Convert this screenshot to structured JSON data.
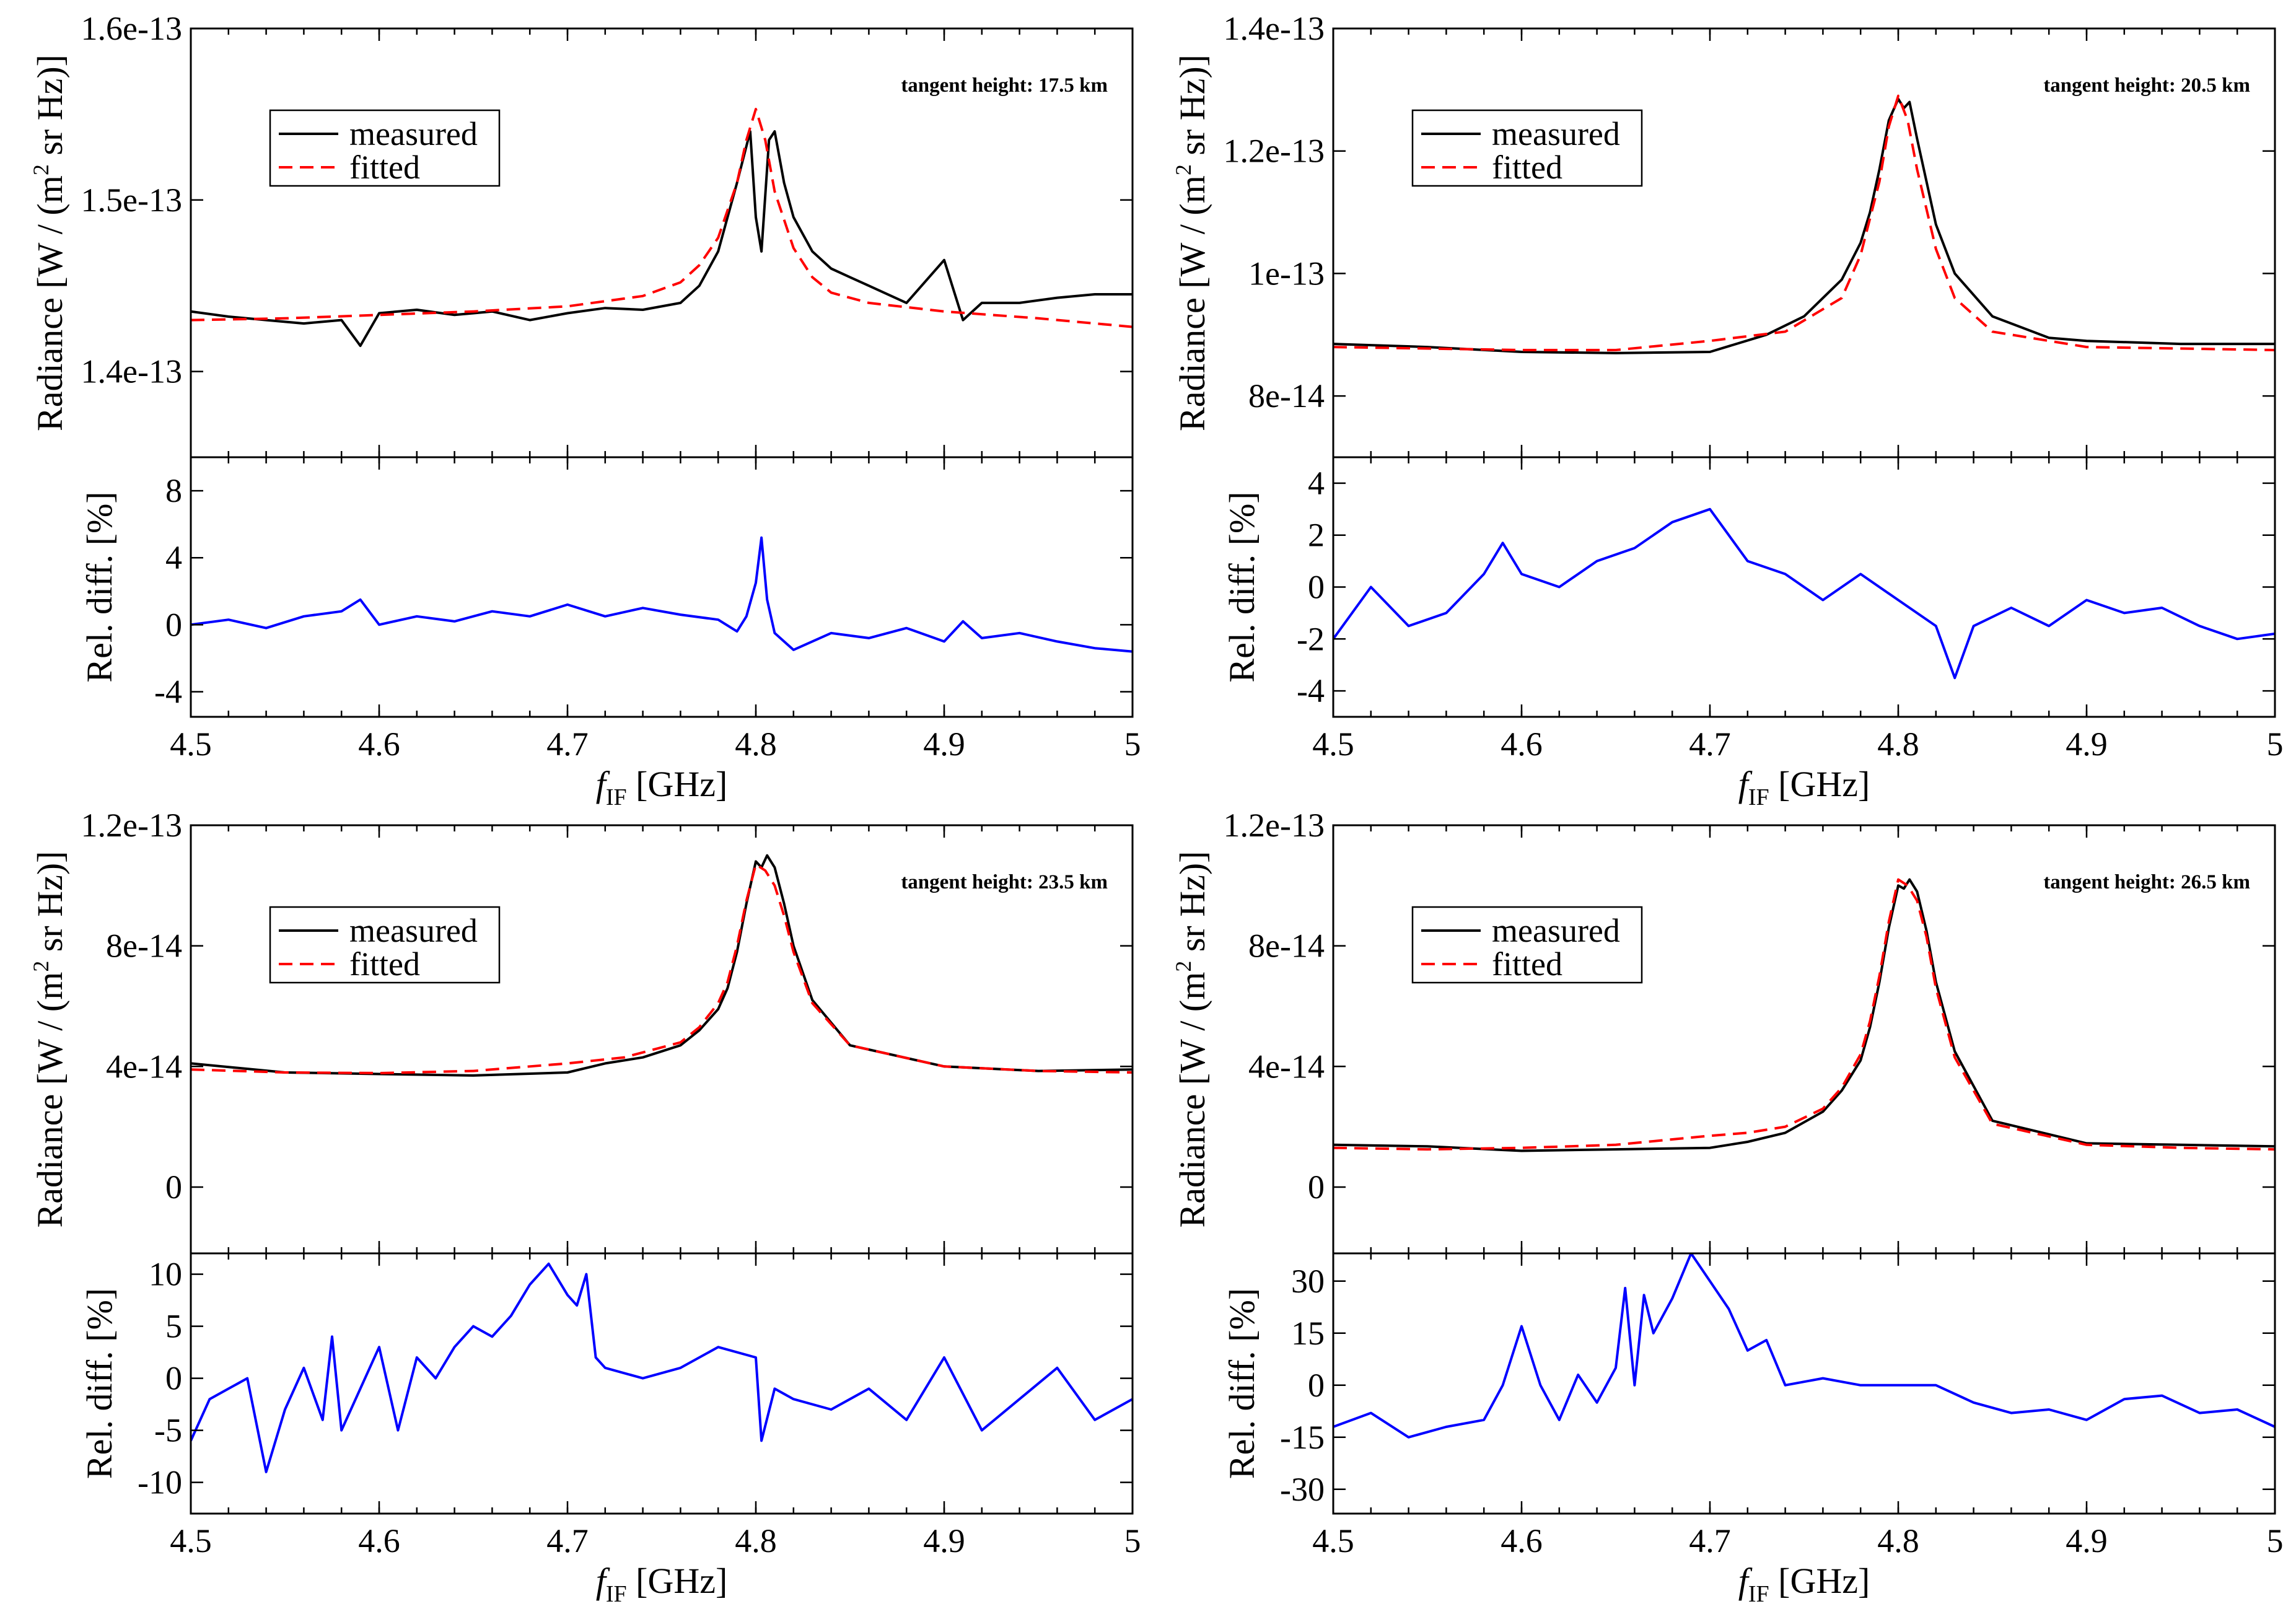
{
  "figure": {
    "x_label_main": "f",
    "x_label_sub": "IF",
    "x_label_unit": " [GHz]",
    "x_tick_labels": [
      "4.5",
      "4.6",
      "4.7",
      "4.8",
      "4.9",
      "5"
    ],
    "colors": {
      "measured": "#000000",
      "fitted": "#ff0000",
      "difference": "#0000ff"
    }
  },
  "chart_data": [
    {
      "type": "line",
      "title": "tangent height: 17.5 km",
      "legend": [
        "measured",
        "fitted"
      ],
      "legend_position": "top-left",
      "xlim": [
        4.5,
        5.0
      ],
      "xticks": [
        4.5,
        4.6,
        4.7,
        4.8,
        4.9,
        5.0
      ],
      "radiance": {
        "ylabel_prefix": "Radiance [W / (m",
        "ylabel_sup": "2",
        "ylabel_suffix": " sr Hz)]",
        "ylim": [
          1.35e-13,
          1.6e-13
        ],
        "yticks": [
          1.4e-13,
          1.5e-13,
          1.6e-13
        ],
        "ytick_labels": [
          "1.4e-13",
          "1.5e-13",
          "1.6e-13"
        ],
        "series": [
          {
            "name": "measured",
            "x": [
              4.5,
              4.52,
              4.54,
              4.56,
              4.58,
              4.59,
              4.6,
              4.62,
              4.64,
              4.66,
              4.68,
              4.7,
              4.72,
              4.74,
              4.76,
              4.77,
              4.78,
              4.79,
              4.797,
              4.8,
              4.803,
              4.807,
              4.81,
              4.815,
              4.82,
              4.83,
              4.84,
              4.85,
              4.86,
              4.88,
              4.9,
              4.91,
              4.92,
              4.94,
              4.96,
              4.98,
              5.0
            ],
            "y": [
              1.435e-13,
              1.432e-13,
              1.43e-13,
              1.428e-13,
              1.43e-13,
              1.415e-13,
              1.434e-13,
              1.436e-13,
              1.433e-13,
              1.435e-13,
              1.43e-13,
              1.434e-13,
              1.437e-13,
              1.436e-13,
              1.44e-13,
              1.45e-13,
              1.47e-13,
              1.51e-13,
              1.54e-13,
              1.49e-13,
              1.47e-13,
              1.535e-13,
              1.54e-13,
              1.51e-13,
              1.49e-13,
              1.47e-13,
              1.46e-13,
              1.455e-13,
              1.45e-13,
              1.44e-13,
              1.465e-13,
              1.43e-13,
              1.44e-13,
              1.44e-13,
              1.443e-13,
              1.445e-13,
              1.445e-13
            ]
          },
          {
            "name": "fitted",
            "x": [
              4.5,
              4.55,
              4.6,
              4.65,
              4.7,
              4.74,
              4.76,
              4.77,
              4.78,
              4.79,
              4.795,
              4.8,
              4.805,
              4.81,
              4.82,
              4.83,
              4.84,
              4.86,
              4.9,
              4.95,
              5.0
            ],
            "y": [
              1.43e-13,
              1.431e-13,
              1.433e-13,
              1.435e-13,
              1.438e-13,
              1.444e-13,
              1.452e-13,
              1.462e-13,
              1.478e-13,
              1.51e-13,
              1.535e-13,
              1.553e-13,
              1.535e-13,
              1.505e-13,
              1.472e-13,
              1.455e-13,
              1.446e-13,
              1.44e-13,
              1.435e-13,
              1.431e-13,
              1.426e-13
            ]
          }
        ]
      },
      "difference": {
        "ylabel": "Rel. diff. [%]",
        "ylim": [
          -5.5,
          10
        ],
        "yticks": [
          -4,
          0,
          4,
          8
        ],
        "ytick_labels": [
          "-4",
          "0",
          "4",
          "8"
        ],
        "series": [
          {
            "name": "difference",
            "x": [
              4.5,
              4.52,
              4.54,
              4.56,
              4.58,
              4.59,
              4.6,
              4.62,
              4.64,
              4.66,
              4.68,
              4.7,
              4.72,
              4.74,
              4.76,
              4.78,
              4.79,
              4.795,
              4.8,
              4.803,
              4.806,
              4.81,
              4.82,
              4.84,
              4.86,
              4.88,
              4.9,
              4.91,
              4.92,
              4.94,
              4.96,
              4.98,
              5.0
            ],
            "y": [
              0,
              0.3,
              -0.2,
              0.5,
              0.8,
              1.5,
              0,
              0.5,
              0.2,
              0.8,
              0.5,
              1.2,
              0.5,
              1.0,
              0.6,
              0.3,
              -0.4,
              0.5,
              2.5,
              5.2,
              1.5,
              -0.5,
              -1.5,
              -0.5,
              -0.8,
              -0.2,
              -1.0,
              0.2,
              -0.8,
              -0.5,
              -1.0,
              -1.4,
              -1.6
            ]
          }
        ]
      }
    },
    {
      "type": "line",
      "title": "tangent height: 20.5 km",
      "legend": [
        "measured",
        "fitted"
      ],
      "legend_position": "top-left",
      "xlim": [
        4.5,
        5.0
      ],
      "xticks": [
        4.5,
        4.6,
        4.7,
        4.8,
        4.9,
        5.0
      ],
      "radiance": {
        "ylabel_prefix": "Radiance [W / (m",
        "ylabel_sup": "2",
        "ylabel_suffix": " sr Hz)]",
        "ylim": [
          7e-14,
          1.4e-13
        ],
        "yticks": [
          8e-14,
          1e-13,
          1.2e-13,
          1.4e-13
        ],
        "ytick_labels": [
          "8e-14",
          "1e-13",
          "1.2e-13",
          "1.4e-13"
        ],
        "series": [
          {
            "name": "measured",
            "x": [
              4.5,
              4.55,
              4.6,
              4.65,
              4.7,
              4.73,
              4.75,
              4.77,
              4.78,
              4.785,
              4.79,
              4.795,
              4.8,
              4.803,
              4.806,
              4.81,
              4.815,
              4.82,
              4.83,
              4.85,
              4.88,
              4.9,
              4.95,
              5.0
            ],
            "y": [
              8.85e-14,
              8.8e-14,
              8.72e-14,
              8.7e-14,
              8.72e-14,
              9e-14,
              9.3e-14,
              9.9e-14,
              1.05e-13,
              1.1e-13,
              1.17e-13,
              1.25e-13,
              1.285e-13,
              1.27e-13,
              1.28e-13,
              1.22e-13,
              1.15e-13,
              1.08e-13,
              1e-13,
              9.3e-14,
              8.95e-14,
              8.9e-14,
              8.85e-14,
              8.85e-14
            ]
          },
          {
            "name": "fitted",
            "x": [
              4.5,
              4.6,
              4.65,
              4.7,
              4.74,
              4.77,
              4.78,
              4.79,
              4.795,
              4.8,
              4.805,
              4.81,
              4.82,
              4.83,
              4.85,
              4.9,
              5.0
            ],
            "y": [
              8.8e-14,
              8.75e-14,
              8.75e-14,
              8.9e-14,
              9.05e-14,
              9.6e-14,
              1.03e-13,
              1.15e-13,
              1.24e-13,
              1.29e-13,
              1.25e-13,
              1.17e-13,
              1.04e-13,
              9.6e-14,
              9.05e-14,
              8.8e-14,
              8.75e-14
            ]
          }
        ]
      },
      "difference": {
        "ylabel": "Rel. diff. [%]",
        "ylim": [
          -5,
          5
        ],
        "yticks": [
          -4,
          -2,
          0,
          2,
          4
        ],
        "ytick_labels": [
          "-4",
          "-2",
          "0",
          "2",
          "4"
        ],
        "series": [
          {
            "name": "difference",
            "x": [
              4.5,
              4.52,
              4.54,
              4.56,
              4.58,
              4.59,
              4.6,
              4.62,
              4.64,
              4.66,
              4.68,
              4.7,
              4.71,
              4.72,
              4.74,
              4.76,
              4.78,
              4.8,
              4.82,
              4.83,
              4.84,
              4.86,
              4.88,
              4.9,
              4.92,
              4.94,
              4.96,
              4.98,
              5.0
            ],
            "y": [
              -2.0,
              0.0,
              -1.5,
              -1.0,
              0.5,
              1.7,
              0.5,
              0.0,
              1.0,
              1.5,
              2.5,
              3.0,
              2.0,
              1.0,
              0.5,
              -0.5,
              0.5,
              -0.5,
              -1.5,
              -3.5,
              -1.5,
              -0.8,
              -1.5,
              -0.5,
              -1.0,
              -0.8,
              -1.5,
              -2.0,
              -1.8
            ]
          }
        ]
      }
    },
    {
      "type": "line",
      "title": "tangent height: 23.5 km",
      "legend": [
        "measured",
        "fitted"
      ],
      "legend_position": "top-left",
      "xlim": [
        4.5,
        5.0
      ],
      "xticks": [
        4.5,
        4.6,
        4.7,
        4.8,
        4.9,
        5.0
      ],
      "radiance": {
        "ylabel_prefix": "Radiance [W / (m",
        "ylabel_sup": "2",
        "ylabel_suffix": " sr Hz)]",
        "ylim": [
          -2.2e-14,
          1.2e-13
        ],
        "yticks": [
          0,
          4e-14,
          8e-14,
          1.2e-13
        ],
        "ytick_labels": [
          "0",
          "4e-14",
          "8e-14",
          "1.2e-13"
        ],
        "series": [
          {
            "name": "measured",
            "x": [
              4.5,
              4.55,
              4.6,
              4.65,
              4.7,
              4.72,
              4.74,
              4.76,
              4.77,
              4.78,
              4.785,
              4.79,
              4.795,
              4.8,
              4.803,
              4.806,
              4.81,
              4.815,
              4.82,
              4.83,
              4.85,
              4.9,
              4.95,
              5.0
            ],
            "y": [
              4.1e-14,
              3.8e-14,
              3.75e-14,
              3.7e-14,
              3.8e-14,
              4.1e-14,
              4.3e-14,
              4.7e-14,
              5.2e-14,
              5.9e-14,
              6.6e-14,
              7.8e-14,
              9.4e-14,
              1.08e-13,
              1.06e-13,
              1.1e-13,
              1.06e-13,
              9.4e-14,
              8e-14,
              6.2e-14,
              4.7e-14,
              4e-14,
              3.85e-14,
              3.9e-14
            ]
          },
          {
            "name": "fitted",
            "x": [
              4.5,
              4.55,
              4.6,
              4.65,
              4.7,
              4.73,
              4.76,
              4.77,
              4.78,
              4.785,
              4.79,
              4.795,
              4.8,
              4.805,
              4.81,
              4.815,
              4.82,
              4.83,
              4.85,
              4.9,
              4.95,
              5.0
            ],
            "y": [
              3.9e-14,
              3.8e-14,
              3.78e-14,
              3.85e-14,
              4.1e-14,
              4.3e-14,
              4.8e-14,
              5.3e-14,
              6.1e-14,
              6.8e-14,
              8e-14,
              9.5e-14,
              1.07e-13,
              1.05e-13,
              1e-13,
              9e-14,
              7.8e-14,
              6.1e-14,
              4.7e-14,
              4e-14,
              3.85e-14,
              3.8e-14
            ]
          }
        ]
      },
      "difference": {
        "ylabel": "Rel. diff. [%]",
        "ylim": [
          -13,
          12
        ],
        "yticks": [
          -10,
          -5,
          0,
          5,
          10
        ],
        "ytick_labels": [
          "-10",
          "-5",
          "0",
          "5",
          "10"
        ],
        "series": [
          {
            "name": "difference",
            "x": [
              4.5,
              4.51,
              4.52,
              4.53,
              4.54,
              4.55,
              4.56,
              4.57,
              4.575,
              4.58,
              4.6,
              4.61,
              4.62,
              4.63,
              4.64,
              4.65,
              4.66,
              4.67,
              4.68,
              4.69,
              4.7,
              4.705,
              4.71,
              4.715,
              4.72,
              4.74,
              4.76,
              4.78,
              4.8,
              4.803,
              4.81,
              4.82,
              4.84,
              4.86,
              4.88,
              4.9,
              4.92,
              4.94,
              4.96,
              4.98,
              5.0
            ],
            "y": [
              -6,
              -2,
              -1,
              0,
              -9,
              -3,
              1,
              -4,
              4,
              -5,
              3,
              -5,
              2,
              0,
              3,
              5,
              4,
              6,
              9,
              11,
              8,
              7,
              10,
              2,
              1,
              0,
              1,
              3,
              2,
              -6,
              -1,
              -2,
              -3,
              -1,
              -4,
              2,
              -5,
              -2,
              1,
              -4,
              -2
            ]
          }
        ]
      }
    },
    {
      "type": "line",
      "title": "tangent height: 26.5 km",
      "legend": [
        "measured",
        "fitted"
      ],
      "legend_position": "top-left",
      "xlim": [
        4.5,
        5.0
      ],
      "xticks": [
        4.5,
        4.6,
        4.7,
        4.8,
        4.9,
        5.0
      ],
      "radiance": {
        "ylabel_prefix": "Radiance [W / (m",
        "ylabel_sup": "2",
        "ylabel_suffix": " sr Hz)]",
        "ylim": [
          -2.2e-14,
          1.2e-13
        ],
        "yticks": [
          0,
          4e-14,
          8e-14,
          1.2e-13
        ],
        "ytick_labels": [
          "0",
          "4e-14",
          "8e-14",
          "1.2e-13"
        ],
        "series": [
          {
            "name": "measured",
            "x": [
              4.5,
              4.55,
              4.6,
              4.65,
              4.7,
              4.72,
              4.74,
              4.76,
              4.77,
              4.78,
              4.785,
              4.79,
              4.795,
              4.8,
              4.803,
              4.806,
              4.81,
              4.815,
              4.82,
              4.83,
              4.85,
              4.9,
              4.95,
              5.0
            ],
            "y": [
              1.4e-14,
              1.35e-14,
              1.2e-14,
              1.25e-14,
              1.3e-14,
              1.5e-14,
              1.8e-14,
              2.5e-14,
              3.2e-14,
              4.2e-14,
              5.3e-14,
              6.8e-14,
              8.6e-14,
              1e-13,
              9.9e-14,
              1.02e-13,
              9.8e-14,
              8.5e-14,
              6.8e-14,
              4.5e-14,
              2.2e-14,
              1.45e-14,
              1.4e-14,
              1.35e-14
            ]
          },
          {
            "name": "fitted",
            "x": [
              4.5,
              4.55,
              4.6,
              4.65,
              4.7,
              4.72,
              4.74,
              4.76,
              4.77,
              4.78,
              4.785,
              4.79,
              4.795,
              4.8,
              4.805,
              4.81,
              4.815,
              4.82,
              4.83,
              4.85,
              4.9,
              4.95,
              5.0
            ],
            "y": [
              1.3e-14,
              1.25e-14,
              1.3e-14,
              1.4e-14,
              1.7e-14,
              1.8e-14,
              2e-14,
              2.6e-14,
              3.3e-14,
              4.4e-14,
              5.5e-14,
              7e-14,
              8.8e-14,
              1.02e-13,
              1e-13,
              9.5e-14,
              8.3e-14,
              6.6e-14,
              4.3e-14,
              2.1e-14,
              1.4e-14,
              1.3e-14,
              1.25e-14
            ]
          }
        ]
      },
      "difference": {
        "ylabel": "Rel. diff. [%]",
        "ylim": [
          -37,
          38
        ],
        "yticks": [
          -30,
          -15,
          0,
          15,
          30
        ],
        "ytick_labels": [
          "-30",
          "-15",
          "0",
          "15",
          "30"
        ],
        "series": [
          {
            "name": "difference",
            "x": [
              4.5,
              4.52,
              4.54,
              4.56,
              4.58,
              4.59,
              4.6,
              4.61,
              4.62,
              4.63,
              4.64,
              4.65,
              4.655,
              4.66,
              4.665,
              4.67,
              4.68,
              4.69,
              4.7,
              4.71,
              4.72,
              4.73,
              4.74,
              4.76,
              4.78,
              4.8,
              4.82,
              4.84,
              4.86,
              4.88,
              4.9,
              4.92,
              4.94,
              4.96,
              4.98,
              5.0
            ],
            "y": [
              -12,
              -8,
              -15,
              -12,
              -10,
              0,
              17,
              0,
              -10,
              3,
              -5,
              5,
              28,
              0,
              26,
              15,
              25,
              38,
              30,
              22,
              10,
              13,
              0,
              2,
              0,
              0,
              0,
              -5,
              -8,
              -7,
              -10,
              -4,
              -3,
              -8,
              -7,
              -12
            ]
          }
        ]
      }
    }
  ]
}
